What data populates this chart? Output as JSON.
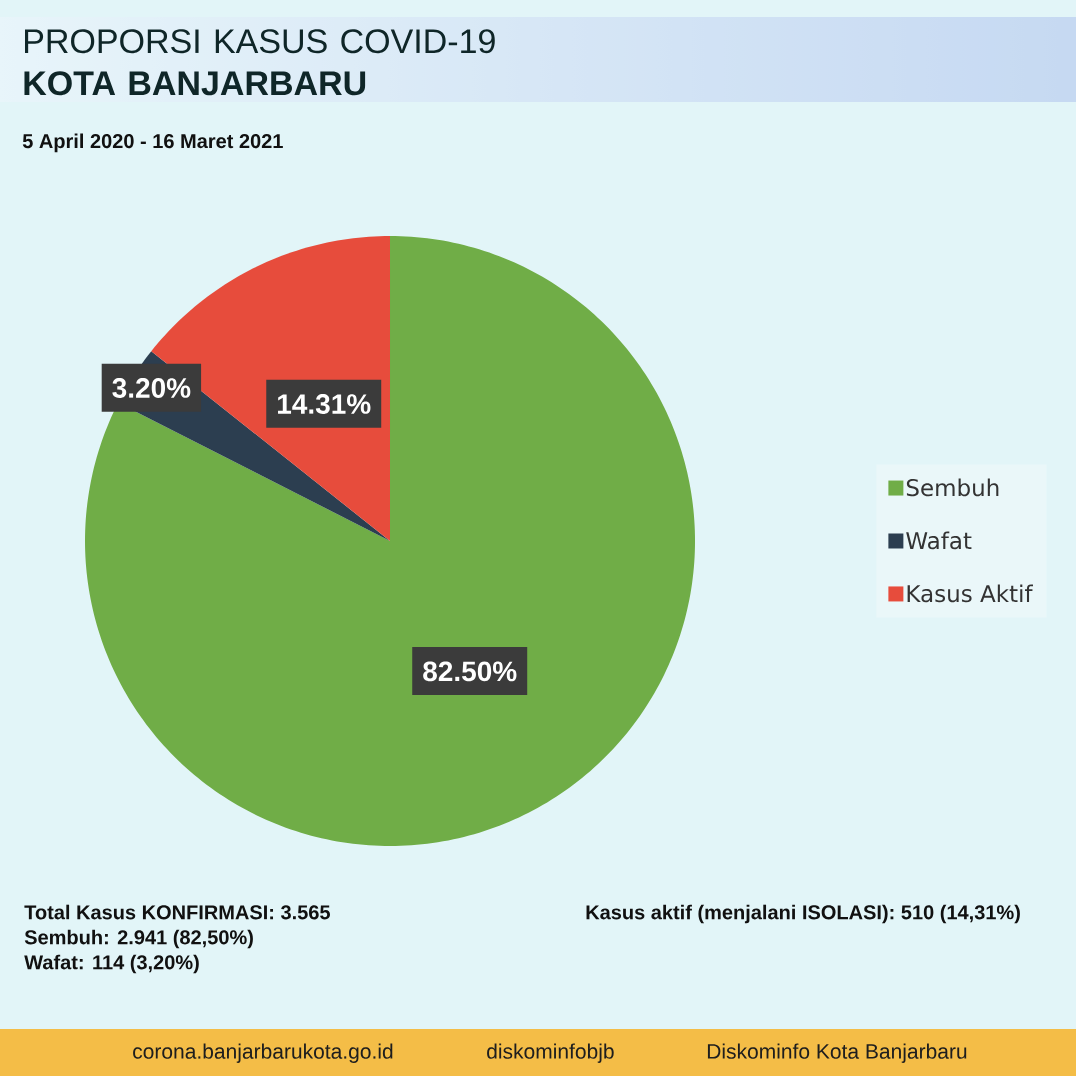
{
  "chart_data": {
    "type": "pie",
    "title": "PROPORSI KASUS COVID-19 **KOTA BANJARBARU**",
    "subtitle": "5 April 2020 - 16 Maret 2021",
    "categories": [
      "Sembuh",
      "Wafat",
      "Kasus Aktif"
    ],
    "values": [
      82.5,
      3.2,
      14.31
    ],
    "colors": [
      "#70ad47",
      "#2c3e50",
      "#e74c3c"
    ],
    "value_labels": [
      "82.50%",
      "3.20%",
      "14.31%"
    ],
    "legend": "right",
    "annotations": [
      "Total Kasus KONFIRMASI: 3.565",
      "Sembuh: 2.941 (82,50%)",
      "Wafat: 114 (3,20%)",
      "Kasus aktif (menjalani ISOLASI): 510 (14,31%)",
      "corona.banjarbarukota.go.id",
      "diskominfobjb",
      "Diskominfo Kota Banjarbaru"
    ]
  }
}
